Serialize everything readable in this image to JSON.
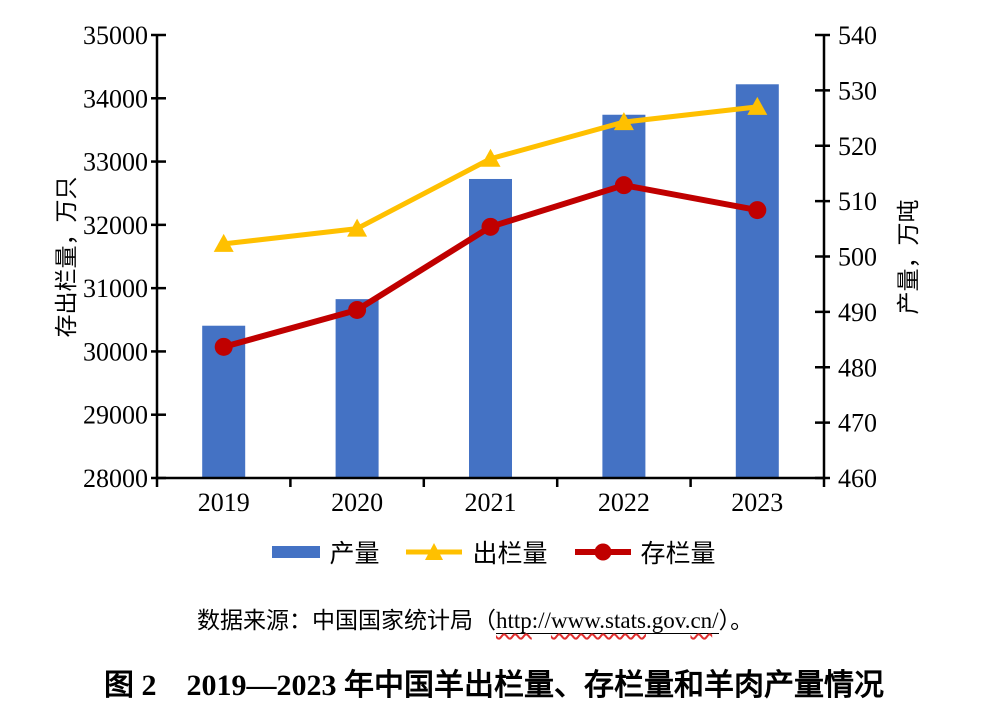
{
  "page": {
    "background": "#ffffff"
  },
  "chart_data": {
    "type": "bar",
    "subtype": "combo-bar-line-dual-axis",
    "categories": [
      "2019",
      "2020",
      "2021",
      "2022",
      "2023"
    ],
    "series": [
      {
        "key": "production",
        "name": "产量",
        "type": "bar",
        "axis": "right",
        "color": "#4472C4",
        "values": [
          487.5,
          492.3,
          514.0,
          525.6,
          531.1
        ]
      },
      {
        "key": "slaughter",
        "name": "出栏量",
        "type": "line",
        "axis": "left",
        "color": "#FFC000",
        "marker": "triangle",
        "values": [
          31699,
          31941,
          33045,
          33624,
          33864
        ]
      },
      {
        "key": "stock",
        "name": "存栏量",
        "type": "line",
        "axis": "left",
        "color": "#C00000",
        "marker": "circle",
        "values": [
          30072,
          30655,
          31969,
          32627,
          32233
        ]
      }
    ],
    "left_axis": {
      "label": "存出栏量，万只",
      "min": 28000,
      "max": 35000,
      "step": 1000
    },
    "right_axis": {
      "label": "产量，万吨",
      "min": 460,
      "max": 540,
      "step": 10
    },
    "grid": false,
    "legend_position": "bottom",
    "axis_color": "#000000"
  },
  "caption": {
    "prefix": "数据来源：中国国家统计局（",
    "url_segments": [
      {
        "text": "http",
        "squiggle": true
      },
      {
        "text": "://",
        "squiggle": false
      },
      {
        "text": "www.stats",
        "squiggle": true
      },
      {
        "text": ".gov.",
        "squiggle": false
      },
      {
        "text": "cn",
        "squiggle": true
      },
      {
        "text": "/",
        "squiggle": false
      }
    ],
    "suffix": "）。"
  },
  "figure_title": {
    "text": "图 2　2019—2023 年中国羊出栏量、存栏量和羊肉产量情况"
  }
}
